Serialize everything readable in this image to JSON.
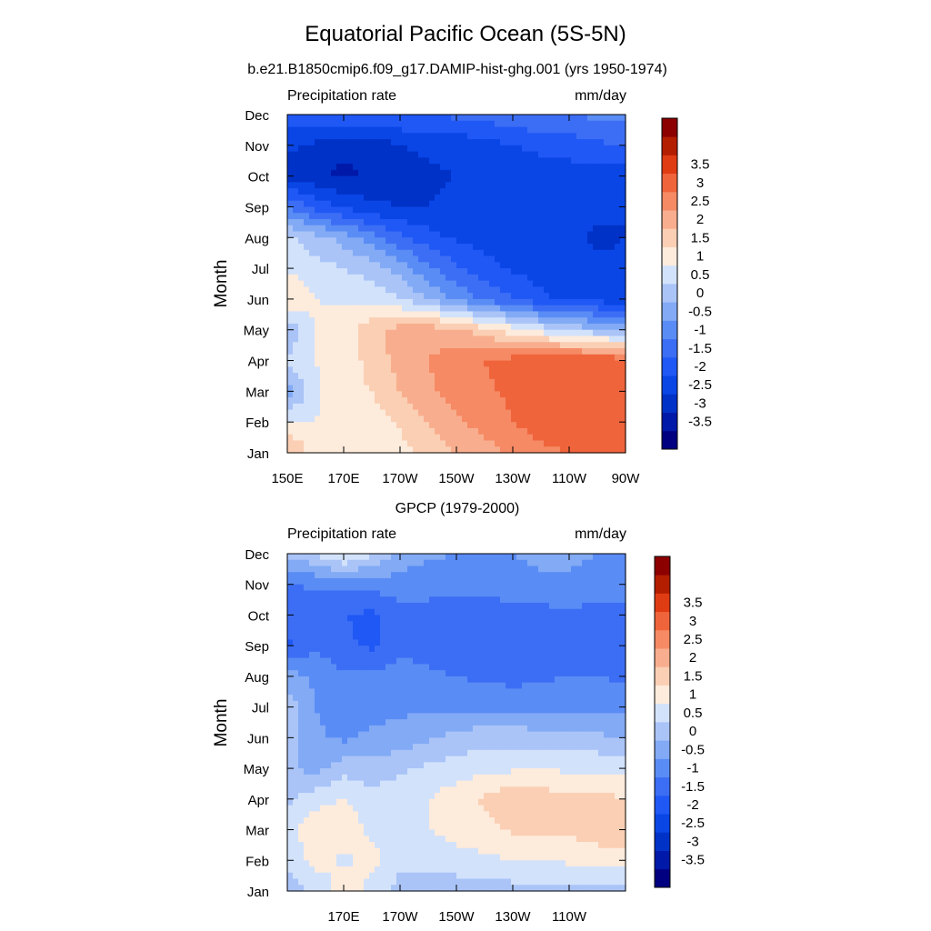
{
  "figure": {
    "title": "Equatorial Pacific Ocean (5S-5N)"
  },
  "colorbar": {
    "colors": [
      "#000080",
      "#0019a8",
      "#0032c8",
      "#0a46e6",
      "#2058f5",
      "#3c6ef5",
      "#5a8cf5",
      "#82aaf5",
      "#aac4f8",
      "#d2e2fb",
      "#fdebdc",
      "#fbcfb4",
      "#f8ae8e",
      "#f58a64",
      "#f0643c",
      "#e03c14",
      "#b41e00",
      "#8c0000"
    ],
    "labels": [
      "-3.5",
      "-3",
      "-2.5",
      "-2",
      "-1.5",
      "-1",
      "-0.5",
      "0",
      "0.5",
      "1",
      "1.5",
      "2",
      "2.5",
      "3",
      "3.5"
    ]
  },
  "chart_data": [
    {
      "type": "heatmap",
      "title": "b.e21.B1850cmip6.f09_g17.DAMIP-hist-ghg.001 (yrs 1950-1974)",
      "left_label": "Precipitation rate",
      "right_label": "mm/day",
      "ylabel": "Month",
      "xlabel": "",
      "x_tick_labels": [
        "150E",
        "170E",
        "170W",
        "150W",
        "130W",
        "110W",
        "90W"
      ],
      "y_tick_labels": [
        "Jan",
        "Feb",
        "Mar",
        "Apr",
        "May",
        "Jun",
        "Jul",
        "Aug",
        "Sep",
        "Oct",
        "Nov",
        "Dec"
      ],
      "x_range": [
        "150E",
        "90W"
      ],
      "units": "mm/day",
      "x_lon": [
        150,
        160,
        170,
        180,
        190,
        200,
        210,
        220,
        230,
        240,
        250,
        260,
        270
      ],
      "y_month": [
        "Jan",
        "Feb",
        "Mar",
        "Apr",
        "May",
        "Jun",
        "Jul",
        "Aug",
        "Sep",
        "Oct",
        "Nov",
        "Dec"
      ],
      "values": [
        [
          2.2,
          1.2,
          1.0,
          1.0,
          1.3,
          1.7,
          2.0,
          2.3,
          2.6,
          2.9,
          3.0,
          3.1,
          3.1
        ],
        [
          1.0,
          1.0,
          1.2,
          1.2,
          1.6,
          2.0,
          2.4,
          2.7,
          3.0,
          3.2,
          3.3,
          3.2,
          3.0
        ],
        [
          -0.3,
          0.9,
          1.3,
          1.5,
          2.0,
          2.4,
          2.7,
          2.9,
          3.1,
          3.3,
          3.4,
          3.3,
          3.5
        ],
        [
          0.6,
          1.0,
          1.2,
          1.7,
          2.2,
          2.5,
          2.8,
          3.0,
          3.2,
          3.4,
          3.5,
          3.4,
          3.3
        ],
        [
          0.0,
          1.1,
          1.3,
          1.8,
          2.2,
          2.3,
          2.1,
          1.7,
          1.2,
          0.8,
          0.4,
          0.1,
          -0.2
        ],
        [
          1.6,
          1.0,
          0.9,
          0.8,
          0.5,
          0.0,
          -0.6,
          -1.1,
          -1.5,
          -1.9,
          -2.1,
          -2.2,
          -2.3
        ],
        [
          0.9,
          0.7,
          0.5,
          0.3,
          -0.2,
          -0.9,
          -1.4,
          -1.8,
          -2.1,
          -2.2,
          -2.3,
          -2.4,
          -2.4
        ],
        [
          0.6,
          0.2,
          -0.2,
          -0.8,
          -1.4,
          -1.8,
          -2.1,
          -2.2,
          -2.3,
          -2.2,
          -2.4,
          -2.6,
          -2.5
        ],
        [
          -1.0,
          -1.7,
          -2.1,
          -2.4,
          -2.5,
          -2.5,
          -2.4,
          -2.3,
          -2.2,
          -2.2,
          -2.3,
          -2.3,
          -2.5
        ],
        [
          -2.7,
          -2.9,
          -3.1,
          -2.9,
          -2.7,
          -2.6,
          -2.5,
          -2.4,
          -2.3,
          -2.2,
          -2.2,
          -2.3,
          -2.4
        ],
        [
          -2.4,
          -2.6,
          -2.9,
          -2.8,
          -2.5,
          -2.4,
          -2.3,
          -2.2,
          -2.0,
          -1.9,
          -1.8,
          -1.6,
          -1.5
        ],
        [
          -1.6,
          -1.5,
          -1.4,
          -1.4,
          -1.5,
          -1.5,
          -1.4,
          -1.3,
          -1.1,
          -1.0,
          -1.0,
          -0.9,
          -0.8
        ]
      ]
    },
    {
      "type": "heatmap",
      "title": "GPCP (1979-2000)",
      "left_label": "Precipitation rate",
      "right_label": "mm/day",
      "ylabel": "Month",
      "xlabel": "",
      "x_tick_labels": [
        "170E",
        "170W",
        "150W",
        "130W",
        "110W"
      ],
      "y_tick_labels": [
        "Jan",
        "Feb",
        "Mar",
        "Apr",
        "May",
        "Jun",
        "Jul",
        "Aug",
        "Sep",
        "Oct",
        "Nov",
        "Dec"
      ],
      "units": "mm/day",
      "x_lon": [
        150,
        160,
        170,
        180,
        190,
        200,
        210,
        220,
        230,
        240,
        250,
        260,
        270
      ],
      "y_month": [
        "Jan",
        "Feb",
        "Mar",
        "Apr",
        "May",
        "Jun",
        "Jul",
        "Aug",
        "Sep",
        "Oct",
        "Nov",
        "Dec"
      ],
      "values": [
        [
          0.2,
          0.6,
          1.3,
          0.8,
          0.3,
          0.3,
          0.2,
          0.2,
          0.3,
          0.3,
          0.3,
          0.3,
          0.3
        ],
        [
          0.6,
          1.2,
          0.9,
          1.2,
          0.6,
          0.6,
          0.8,
          0.9,
          1.0,
          1.0,
          1.1,
          1.2,
          1.3
        ],
        [
          0.8,
          1.4,
          1.3,
          0.9,
          0.9,
          1.0,
          1.2,
          1.3,
          1.6,
          1.7,
          1.6,
          1.8,
          1.7
        ],
        [
          0.4,
          0.8,
          1.0,
          0.7,
          0.8,
          1.0,
          1.3,
          1.6,
          1.9,
          1.8,
          1.6,
          1.7,
          1.5
        ],
        [
          0.1,
          -0.2,
          0.3,
          0.2,
          0.4,
          0.6,
          0.7,
          0.9,
          0.9,
          1.0,
          0.9,
          0.9,
          0.8
        ],
        [
          0.2,
          -0.4,
          -0.6,
          -0.4,
          -0.3,
          -0.1,
          0.2,
          0.3,
          0.3,
          0.2,
          0.1,
          0.1,
          0.0
        ],
        [
          0.3,
          -0.5,
          -0.7,
          -0.7,
          -0.6,
          -0.6,
          -0.6,
          -0.6,
          -0.6,
          -0.6,
          -0.6,
          -0.6,
          -0.7
        ],
        [
          -0.3,
          -0.6,
          -0.9,
          -0.9,
          -0.8,
          -0.9,
          -1.0,
          -1.1,
          -1.2,
          -1.1,
          -1.0,
          -1.0,
          -1.1
        ],
        [
          -1.6,
          -1.1,
          -1.4,
          -1.6,
          -1.1,
          -1.2,
          -1.3,
          -1.4,
          -1.4,
          -1.3,
          -1.2,
          -1.3,
          -1.3
        ],
        [
          -1.2,
          -1.3,
          -1.5,
          -1.6,
          -1.2,
          -1.2,
          -1.3,
          -1.4,
          -1.3,
          -1.2,
          -1.1,
          -1.2,
          -1.3
        ],
        [
          -1.1,
          -0.9,
          -0.9,
          -0.8,
          -0.7,
          -0.8,
          -0.8,
          -0.7,
          -0.6,
          -0.6,
          -0.6,
          -0.7,
          -0.7
        ],
        [
          0.1,
          0.5,
          1.2,
          0.6,
          -0.2,
          -0.4,
          -0.5,
          -0.5,
          -0.5,
          -0.4,
          -0.4,
          -0.5,
          -0.5
        ]
      ]
    }
  ]
}
